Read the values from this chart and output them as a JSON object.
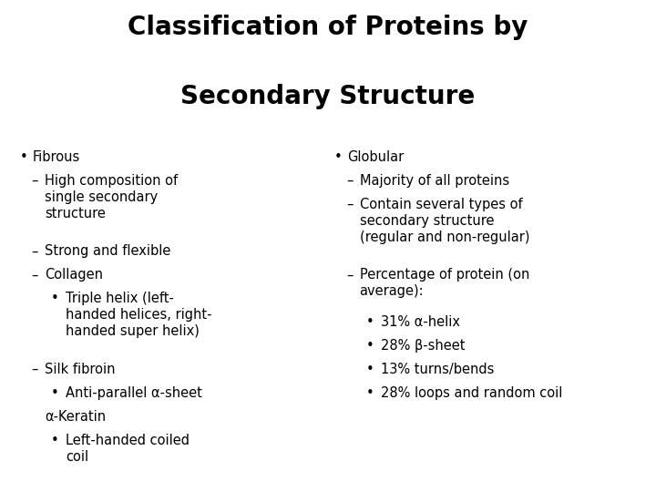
{
  "title_line1": "Classification of Proteins by",
  "title_line2": "Secondary Structure",
  "background_color": "#ffffff",
  "text_color": "#000000",
  "title_fontsize": 20,
  "body_fontsize": 10.5,
  "left_col": [
    {
      "level": 0,
      "bullet": "•",
      "text": "Fibrous",
      "bold": false
    },
    {
      "level": 1,
      "bullet": "–",
      "text": "High composition of\nsingle secondary\nstructure",
      "bold": false
    },
    {
      "level": 1,
      "bullet": "–",
      "text": "Strong and flexible",
      "bold": false
    },
    {
      "level": 1,
      "bullet": "–",
      "text": "Collagen",
      "bold": false
    },
    {
      "level": 2,
      "bullet": "•",
      "text": "Triple helix (left-\nhanded helices, right-\nhanded super helix)",
      "bold": false
    },
    {
      "level": 1,
      "bullet": "–",
      "text": "Silk fibroin",
      "bold": false
    },
    {
      "level": 2,
      "bullet": "•",
      "text": "Anti-parallel α-sheet",
      "bold": false
    },
    {
      "level": 1,
      "bullet": "",
      "text": "α-Keratin",
      "bold": false
    },
    {
      "level": 2,
      "bullet": "•",
      "text": "Left-handed coiled\ncoil",
      "bold": false
    }
  ],
  "right_col": [
    {
      "level": 0,
      "bullet": "•",
      "text": "Globular",
      "bold": false
    },
    {
      "level": 1,
      "bullet": "–",
      "text": "Majority of all proteins",
      "bold": false
    },
    {
      "level": 1,
      "bullet": "–",
      "text": "Contain several types of\nsecondary structure\n(regular and non-regular)",
      "bold": false
    },
    {
      "level": 1,
      "bullet": "–",
      "text": "Percentage of protein (on\naverage):",
      "bold": false
    },
    {
      "level": 2,
      "bullet": "•",
      "text": "31% α-helix",
      "bold": false
    },
    {
      "level": 2,
      "bullet": "•",
      "text": "28% β-sheet",
      "bold": false
    },
    {
      "level": 2,
      "bullet": "•",
      "text": "13% turns/bends",
      "bold": false
    },
    {
      "level": 2,
      "bullet": "•",
      "text": "28% loops and random coil",
      "bold": false
    }
  ]
}
